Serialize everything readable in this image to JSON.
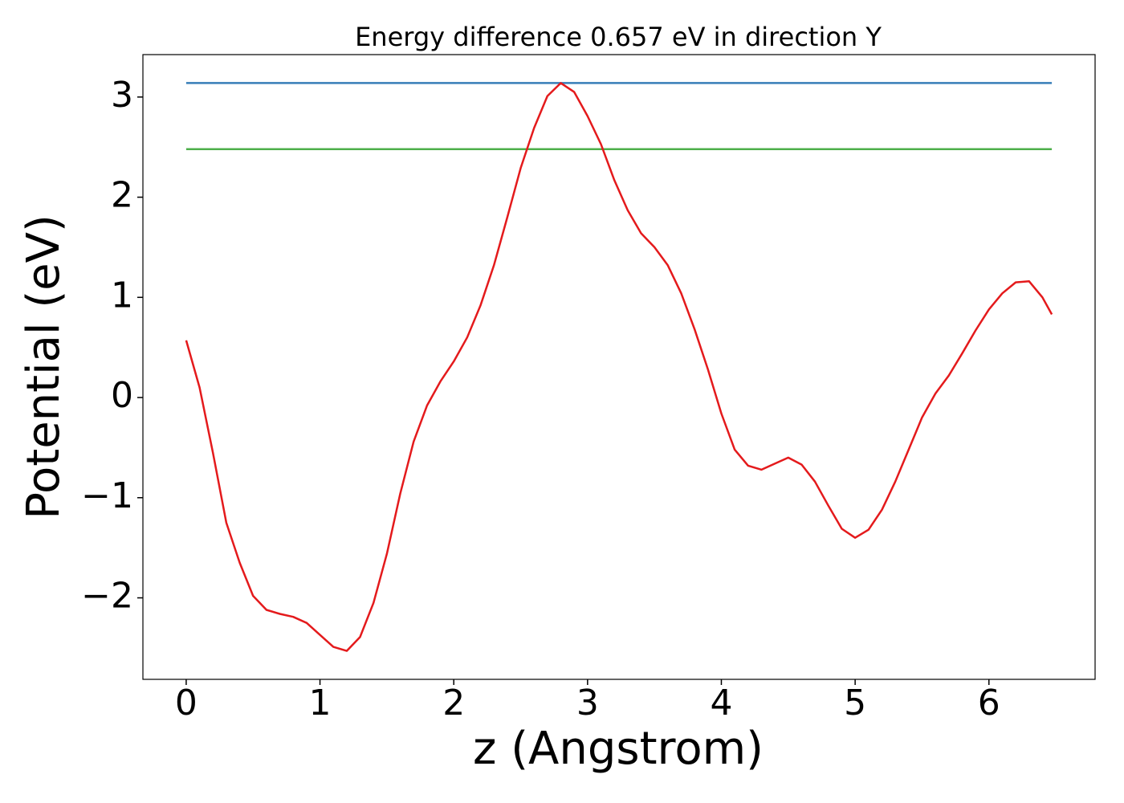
{
  "chart_data": {
    "type": "line",
    "title": "Energy difference 0.657 eV in direction Y",
    "xlabel": "z (Angstrom)",
    "ylabel": "Potential (eV)",
    "xlim": [
      -0.3235,
      6.7935
    ],
    "ylim": [
      -2.8135,
      3.4235
    ],
    "xticks": [
      0,
      1,
      2,
      3,
      4,
      5,
      6
    ],
    "yticks": [
      {
        "value": -2,
        "label": "−2"
      },
      {
        "value": -1,
        "label": "−1"
      },
      0,
      1,
      2,
      3
    ],
    "grid": false,
    "series": [
      {
        "color": "#377eb8",
        "x": [
          0,
          6.47
        ],
        "values": [
          3.14,
          3.14
        ]
      },
      {
        "color": "#4daf4a",
        "x": [
          0,
          6.47
        ],
        "values": [
          2.48,
          2.48
        ]
      },
      {
        "color": "#e41a1c",
        "x": [
          0,
          0.1,
          0.2,
          0.3,
          0.4,
          0.5,
          0.6,
          0.7,
          0.8,
          0.9,
          1.0,
          1.1,
          1.2,
          1.3,
          1.4,
          1.5,
          1.6,
          1.7,
          1.8,
          1.9,
          2.0,
          2.1,
          2.2,
          2.3,
          2.4,
          2.5,
          2.6,
          2.7,
          2.8,
          2.9,
          3.0,
          3.1,
          3.2,
          3.3,
          3.4,
          3.5,
          3.6,
          3.7,
          3.8,
          3.9,
          4.0,
          4.1,
          4.2,
          4.3,
          4.4,
          4.5,
          4.6,
          4.7,
          4.8,
          4.9,
          5.0,
          5.1,
          5.2,
          5.3,
          5.4,
          5.5,
          5.6,
          5.7,
          5.8,
          5.9,
          6.0,
          6.1,
          6.2,
          6.3,
          6.4,
          6.47
        ],
        "values": [
          0.57,
          0.1,
          -0.55,
          -1.25,
          -1.65,
          -1.98,
          -2.12,
          -2.16,
          -2.19,
          -2.25,
          -2.37,
          -2.49,
          -2.53,
          -2.39,
          -2.05,
          -1.56,
          -0.96,
          -0.44,
          -0.08,
          0.16,
          0.36,
          0.6,
          0.92,
          1.32,
          1.8,
          2.29,
          2.69,
          3.01,
          3.14,
          3.05,
          2.81,
          2.53,
          2.17,
          1.87,
          1.64,
          1.5,
          1.32,
          1.04,
          0.68,
          0.28,
          -0.16,
          -0.52,
          -0.68,
          -0.72,
          -0.66,
          -0.6,
          -0.67,
          -0.84,
          -1.08,
          -1.31,
          -1.4,
          -1.32,
          -1.12,
          -0.84,
          -0.52,
          -0.2,
          0.04,
          0.22,
          0.44,
          0.67,
          0.88,
          1.04,
          1.15,
          1.16,
          1.0,
          0.83
        ]
      }
    ]
  }
}
